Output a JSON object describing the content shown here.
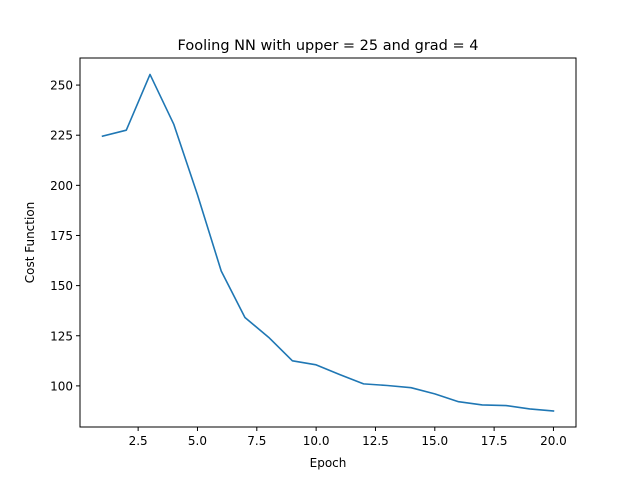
{
  "chart_data": {
    "type": "line",
    "title": "Fooling NN with upper = 25 and grad = 4",
    "xlabel": "Epoch",
    "ylabel": "Cost Function",
    "xlim": [
      0.05,
      20.95
    ],
    "ylim": [
      79.5,
      263.5
    ],
    "xticks": [
      2.5,
      5.0,
      7.5,
      10.0,
      12.5,
      15.0,
      17.5,
      20.0
    ],
    "xtick_labels": [
      "2.5",
      "5.0",
      "7.5",
      "10.0",
      "12.5",
      "15.0",
      "17.5",
      "20.0"
    ],
    "yticks": [
      100,
      125,
      150,
      175,
      200,
      225,
      250
    ],
    "ytick_labels": [
      "100",
      "125",
      "150",
      "175",
      "200",
      "225",
      "250"
    ],
    "grid": false,
    "series": [
      {
        "color": "#1f77b4",
        "x": [
          1,
          2,
          3,
          4,
          5,
          6,
          7,
          8,
          9,
          10,
          11,
          12,
          13,
          14,
          15,
          16,
          17,
          18,
          19,
          20
        ],
        "y": [
          224.5,
          227.5,
          255.3,
          230.5,
          195.3,
          157.3,
          134.1,
          124.2,
          112.5,
          110.5,
          105.6,
          101.0,
          100.2,
          99.1,
          96.0,
          92.1,
          90.5,
          90.2,
          88.5,
          87.5
        ]
      }
    ]
  }
}
